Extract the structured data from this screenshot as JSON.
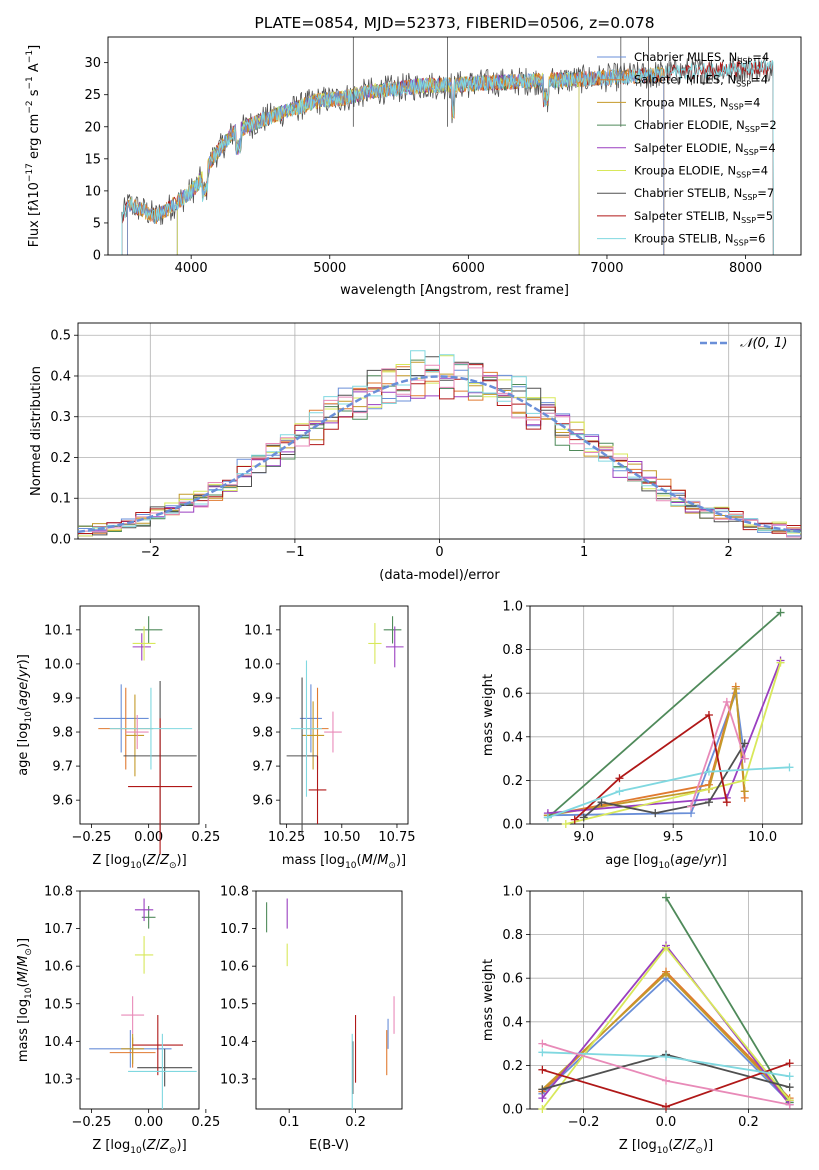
{
  "colors": {
    "Chabrier MILES": "#6a8fd8",
    "Salpeter MILES": "#e07a30",
    "Kroupa MILES": "#c49a2a",
    "Chabrier ELODIE": "#4f8a5a",
    "Salpeter ELODIE": "#9a3fc0",
    "Kroupa ELODIE": "#d8e85a",
    "Chabrier STELIB": "#505050",
    "Salpeter STELIB": "#b01818",
    "Kroupa STELIB": "#80d8e0",
    "pink": "#e88ab8",
    "normal": "#6a8fd8"
  },
  "chart_data": [
    {
      "id": "spectrum",
      "type": "line",
      "title": "PLATE=0854, MJD=52373, FIBERID=0506, z=0.078",
      "xlabel": "wavelength [Angstrom, rest frame]",
      "ylabel_html": "Flux [f<tspan font-style='italic'>λ</tspan>10<tspan dy='-6' font-size='9'>−17</tspan><tspan dy='6'> erg cm</tspan><tspan dy='-6' font-size='9'>−2</tspan><tspan dy='6'> s</tspan><tspan dy='-6' font-size='9'>−1</tspan><tspan dy='6'> A</tspan><tspan dy='-6' font-size='9'>−1</tspan><tspan dy='6'>]</tspan>",
      "xlim": [
        3400,
        8400
      ],
      "ylim": [
        0,
        34
      ],
      "xticks": [
        "4000",
        "5000",
        "6000",
        "7000",
        "8000"
      ],
      "yticks": [
        "0",
        "5",
        "10",
        "15",
        "20",
        "25",
        "30"
      ],
      "legend": [
        {
          "name": "Chabrier MILES",
          "nssp": "4"
        },
        {
          "name": "Salpeter MILES",
          "nssp": "4"
        },
        {
          "name": "Kroupa MILES",
          "nssp": "4"
        },
        {
          "name": "Chabrier ELODIE",
          "nssp": "2"
        },
        {
          "name": "Salpeter ELODIE",
          "nssp": "4"
        },
        {
          "name": "Kroupa ELODIE",
          "nssp": "4"
        },
        {
          "name": "Chabrier STELIB",
          "nssp": "7"
        },
        {
          "name": "Salpeter STELIB",
          "nssp": "5"
        },
        {
          "name": "Kroupa STELIB",
          "nssp": "6"
        }
      ],
      "legend_placement": "top-right",
      "continuum": {
        "x": [
          3500,
          3550,
          3650,
          3750,
          3850,
          3950,
          4050,
          4150,
          4300,
          4500,
          4700,
          4900,
          5100,
          5300,
          5500,
          5700,
          5900,
          6100,
          6300,
          6500,
          6700,
          6900,
          7100,
          7300,
          7500,
          7700,
          7900,
          8100,
          8200
        ],
        "y": [
          6,
          8,
          7,
          6,
          7.5,
          9,
          11,
          15,
          19,
          21,
          22.5,
          24,
          24.5,
          25.5,
          26,
          26.5,
          26.5,
          26.8,
          27,
          27.2,
          27.3,
          27.5,
          27.8,
          28,
          28.5,
          28.8,
          29,
          29.2,
          29.3
        ]
      },
      "ranges": {
        "MILES": [
          3540,
          7410
        ],
        "ELODIE": [
          3900,
          6800
        ],
        "STELIB": [
          3500,
          8200
        ]
      },
      "spikes": [
        {
          "x": 5170,
          "y": 34
        },
        {
          "x": 5850,
          "y": 34
        },
        {
          "x": 7100,
          "y": 34
        },
        {
          "x": 7300,
          "y": 34
        }
      ]
    },
    {
      "id": "residuals",
      "type": "histogram",
      "xlabel": "(data-model)/error",
      "ylabel": "Normed distribution",
      "xlim": [
        -2.5,
        2.5
      ],
      "ylim": [
        0,
        0.53
      ],
      "xticks": [
        "−2",
        "−1",
        "0",
        "1",
        "2"
      ],
      "yticks": [
        "0.0",
        "0.1",
        "0.2",
        "0.3",
        "0.4",
        "0.5"
      ],
      "legend": "𝒩(0, 1)",
      "legend_placement": "top-right",
      "bin_width": 0.1,
      "grid": true
    },
    {
      "id": "age-vs-Z",
      "type": "scatter",
      "xlabel": "Z [log10(Z/Z⊙)]",
      "ylabel": "age [log10(age/yr)]",
      "xlim": [
        -0.3,
        0.22
      ],
      "ylim": [
        9.53,
        10.17
      ],
      "xticks": [
        "−0.25",
        "0.00",
        "0.25"
      ],
      "yticks": [
        "9.6",
        "9.7",
        "9.8",
        "9.9",
        "10.0",
        "10.1"
      ],
      "points": [
        {
          "s": "Chabrier MILES",
          "x": -0.12,
          "y": 9.84,
          "xe": 0.12,
          "ye": 0.1
        },
        {
          "s": "Salpeter MILES",
          "x": -0.1,
          "y": 9.81,
          "xe": 0.12,
          "ye": 0.12
        },
        {
          "s": "Kroupa MILES",
          "x": -0.06,
          "y": 9.79,
          "xe": 0.04,
          "ye": 0.12
        },
        {
          "s": "Chabrier ELODIE",
          "x": 0.0,
          "y": 10.1,
          "xe": 0.06,
          "ye": 0.04
        },
        {
          "s": "Salpeter ELODIE",
          "x": -0.03,
          "y": 10.05,
          "xe": 0.04,
          "ye": 0.04
        },
        {
          "s": "Kroupa ELODIE",
          "x": -0.02,
          "y": 10.06,
          "xe": 0.05,
          "ye": 0.05
        },
        {
          "s": "Chabrier STELIB",
          "x": 0.05,
          "y": 9.73,
          "xe": 0.16,
          "ye": 0.22
        },
        {
          "s": "Salpeter STELIB",
          "x": 0.05,
          "y": 9.64,
          "xe": 0.14,
          "ye": 0.2
        },
        {
          "s": "Kroupa STELIB",
          "x": 0.01,
          "y": 9.81,
          "xe": 0.18,
          "ye": 0.12
        },
        {
          "s": "pink",
          "x": -0.05,
          "y": 9.8,
          "xe": 0.05,
          "ye": 0.05
        }
      ]
    },
    {
      "id": "age-vs-mass",
      "type": "scatter",
      "xlabel": "mass [log10(M/M⊙)]",
      "xlim": [
        10.22,
        10.8
      ],
      "ylim": [
        9.53,
        10.17
      ],
      "xticks": [
        "10.25",
        "10.50",
        "10.75"
      ],
      "yticks": [
        "9.6",
        "9.7",
        "9.8",
        "9.9",
        "10.0",
        "10.1"
      ],
      "points": [
        {
          "s": "Chabrier MILES",
          "x": 10.36,
          "y": 9.84,
          "xe": 0.05,
          "ye": 0.1
        },
        {
          "s": "Salpeter MILES",
          "x": 10.39,
          "y": 9.81,
          "xe": 0.05,
          "ye": 0.12
        },
        {
          "s": "Kroupa MILES",
          "x": 10.37,
          "y": 9.79,
          "xe": 0.05,
          "ye": 0.1
        },
        {
          "s": "Chabrier ELODIE",
          "x": 10.73,
          "y": 10.1,
          "xe": 0.04,
          "ye": 0.04
        },
        {
          "s": "Salpeter ELODIE",
          "x": 10.74,
          "y": 10.05,
          "xe": 0.04,
          "ye": 0.06
        },
        {
          "s": "Kroupa ELODIE",
          "x": 10.65,
          "y": 10.06,
          "xe": 0.03,
          "ye": 0.06
        },
        {
          "s": "Chabrier STELIB",
          "x": 10.32,
          "y": 9.73,
          "xe": 0.07,
          "ye": 0.23
        },
        {
          "s": "Salpeter STELIB",
          "x": 10.39,
          "y": 9.63,
          "xe": 0.04,
          "ye": 0.1
        },
        {
          "s": "Kroupa STELIB",
          "x": 10.34,
          "y": 9.81,
          "xe": 0.07,
          "ye": 0.2
        },
        {
          "s": "pink",
          "x": 10.46,
          "y": 9.8,
          "xe": 0.04,
          "ye": 0.06
        }
      ]
    },
    {
      "id": "weight-vs-age",
      "type": "line",
      "xlabel": "age  [log10(age/yr)]",
      "ylabel": "mass weight",
      "xlim": [
        8.7,
        10.22
      ],
      "ylim": [
        0,
        1
      ],
      "xticks": [
        "9.0",
        "9.5",
        "10.0"
      ],
      "yticks": [
        "0.0",
        "0.2",
        "0.4",
        "0.6",
        "0.8",
        "1.0"
      ],
      "series": [
        {
          "s": "Chabrier MILES",
          "x": [
            8.8,
            9.6,
            9.85,
            9.9
          ],
          "y": [
            0.04,
            0.05,
            0.6,
            0.3
          ]
        },
        {
          "s": "Salpeter MILES",
          "x": [
            8.8,
            9.7,
            9.85,
            9.9
          ],
          "y": [
            0.04,
            0.18,
            0.63,
            0.12
          ]
        },
        {
          "s": "Kroupa MILES",
          "x": [
            8.8,
            9.7,
            9.85,
            9.9
          ],
          "y": [
            0.04,
            0.16,
            0.62,
            0.15
          ]
        },
        {
          "s": "Chabrier ELODIE",
          "x": [
            8.8,
            10.1
          ],
          "y": [
            0.03,
            0.97
          ]
        },
        {
          "s": "Salpeter ELODIE",
          "x": [
            8.8,
            9.8,
            10.1
          ],
          "y": [
            0.05,
            0.12,
            0.75
          ]
        },
        {
          "s": "Kroupa ELODIE",
          "x": [
            8.9,
            9.9,
            10.1
          ],
          "y": [
            0.0,
            0.2,
            0.74
          ]
        },
        {
          "s": "Chabrier STELIB",
          "x": [
            9.0,
            9.1,
            9.4,
            9.7,
            9.9
          ],
          "y": [
            0.03,
            0.1,
            0.05,
            0.1,
            0.37
          ]
        },
        {
          "s": "Salpeter STELIB",
          "x": [
            8.95,
            9.2,
            9.7,
            9.8
          ],
          "y": [
            0.02,
            0.21,
            0.5,
            0.1
          ]
        },
        {
          "s": "Kroupa STELIB",
          "x": [
            8.8,
            9.2,
            9.7,
            10.15
          ],
          "y": [
            0.03,
            0.15,
            0.24,
            0.26
          ]
        },
        {
          "s": "pink",
          "x": [
            9.6,
            9.8,
            9.9
          ],
          "y": [
            0.08,
            0.56,
            0.3
          ]
        }
      ]
    },
    {
      "id": "mass-vs-Z",
      "type": "scatter",
      "xlabel": "Z [log10(Z/Z⊙)]",
      "ylabel": "mass [log10(M/M⊙)]",
      "xlim": [
        -0.3,
        0.22
      ],
      "ylim": [
        10.22,
        10.8
      ],
      "xticks": [
        "−0.25",
        "0.00",
        "0.25"
      ],
      "yticks": [
        "10.3",
        "10.4",
        "10.5",
        "10.6",
        "10.7",
        "10.8"
      ],
      "points": [
        {
          "s": "Chabrier MILES",
          "x": -0.08,
          "y": 10.38,
          "xe": 0.18,
          "ye": 0.05
        },
        {
          "s": "Salpeter MILES",
          "x": -0.07,
          "y": 10.37,
          "xe": 0.1,
          "ye": 0.04
        },
        {
          "s": "Kroupa MILES",
          "x": -0.07,
          "y": 10.38,
          "xe": 0.05,
          "ye": 0.04
        },
        {
          "s": "Chabrier ELODIE",
          "x": 0.0,
          "y": 10.73,
          "xe": 0.03,
          "ye": 0.03
        },
        {
          "s": "Salpeter ELODIE",
          "x": -0.02,
          "y": 10.75,
          "xe": 0.04,
          "ye": 0.03
        },
        {
          "s": "Kroupa ELODIE",
          "x": -0.02,
          "y": 10.63,
          "xe": 0.04,
          "ye": 0.05
        },
        {
          "s": "Chabrier STELIB",
          "x": 0.07,
          "y": 10.33,
          "xe": 0.12,
          "ye": 0.05
        },
        {
          "s": "Salpeter STELIB",
          "x": 0.04,
          "y": 10.39,
          "xe": 0.11,
          "ye": 0.08
        },
        {
          "s": "Kroupa STELIB",
          "x": 0.06,
          "y": 10.32,
          "xe": 0.15,
          "ye": 0.1
        },
        {
          "s": "pink",
          "x": -0.07,
          "y": 10.47,
          "xe": 0.05,
          "ye": 0.05
        }
      ]
    },
    {
      "id": "mass-vs-ebv",
      "type": "scatter",
      "xlabel": "E(B-V)",
      "xlim": [
        0.05,
        0.27
      ],
      "ylim": [
        10.22,
        10.8
      ],
      "xticks": [
        "0.1",
        "0.2"
      ],
      "yticks": [
        "10.3",
        "10.4",
        "10.5",
        "10.6",
        "10.7",
        "10.8"
      ],
      "points": [
        {
          "s": "Chabrier MILES",
          "x": 0.249,
          "y": 10.42,
          "xe": 0.0,
          "ye": 0.04
        },
        {
          "s": "Salpeter MILES",
          "x": 0.247,
          "y": 10.37,
          "xe": 0.0,
          "ye": 0.06
        },
        {
          "s": "Chabrier ELODIE",
          "x": 0.066,
          "y": 10.73,
          "xe": 0.0,
          "ye": 0.04
        },
        {
          "s": "Salpeter ELODIE",
          "x": 0.097,
          "y": 10.74,
          "xe": 0.0,
          "ye": 0.04
        },
        {
          "s": "Kroupa ELODIE",
          "x": 0.097,
          "y": 10.63,
          "xe": 0.0,
          "ye": 0.03
        },
        {
          "s": "Chabrier STELIB",
          "x": 0.196,
          "y": 10.33,
          "xe": 0.0,
          "ye": 0.07
        },
        {
          "s": "Salpeter STELIB",
          "x": 0.2,
          "y": 10.38,
          "xe": 0.0,
          "ye": 0.09
        },
        {
          "s": "Kroupa STELIB",
          "x": 0.195,
          "y": 10.32,
          "xe": 0.0,
          "ye": 0.1
        },
        {
          "s": "pink",
          "x": 0.258,
          "y": 10.47,
          "xe": 0.0,
          "ye": 0.05
        }
      ]
    },
    {
      "id": "weight-vs-Z",
      "type": "line",
      "xlabel": "Z [log10(Z/Z⊙)]",
      "ylabel": "mass weight",
      "xlim": [
        -0.33,
        0.33
      ],
      "ylim": [
        0,
        1
      ],
      "xticks": [
        "−0.2",
        "0.0",
        "0.2"
      ],
      "yticks": [
        "0.0",
        "0.2",
        "0.4",
        "0.6",
        "0.8",
        "1.0"
      ],
      "series": [
        {
          "s": "Chabrier MILES",
          "x": [
            -0.3,
            0.0,
            0.3
          ],
          "y": [
            0.07,
            0.6,
            0.03
          ]
        },
        {
          "s": "Salpeter MILES",
          "x": [
            -0.3,
            0.0,
            0.3
          ],
          "y": [
            0.08,
            0.63,
            0.05
          ]
        },
        {
          "s": "Kroupa MILES",
          "x": [
            -0.3,
            0.0,
            0.3
          ],
          "y": [
            0.09,
            0.62,
            0.04
          ]
        },
        {
          "s": "Chabrier ELODIE",
          "x": [
            0.0,
            0.3
          ],
          "y": [
            0.97,
            0.03
          ]
        },
        {
          "s": "Salpeter ELODIE",
          "x": [
            -0.3,
            0.0,
            0.3
          ],
          "y": [
            0.05,
            0.75,
            0.02
          ]
        },
        {
          "s": "Kroupa ELODIE",
          "x": [
            -0.3,
            0.0,
            0.3
          ],
          "y": [
            0.0,
            0.74,
            0.04
          ]
        },
        {
          "s": "Chabrier STELIB",
          "x": [
            -0.3,
            0.0,
            0.3
          ],
          "y": [
            0.09,
            0.25,
            0.1
          ]
        },
        {
          "s": "Salpeter STELIB",
          "x": [
            -0.3,
            0.0,
            0.3
          ],
          "y": [
            0.18,
            0.01,
            0.21
          ]
        },
        {
          "s": "Kroupa STELIB",
          "x": [
            -0.3,
            0.0,
            0.3
          ],
          "y": [
            0.26,
            0.24,
            0.15
          ]
        },
        {
          "s": "pink",
          "x": [
            -0.3,
            0.0,
            0.3
          ],
          "y": [
            0.3,
            0.13,
            0.02
          ]
        }
      ]
    }
  ]
}
